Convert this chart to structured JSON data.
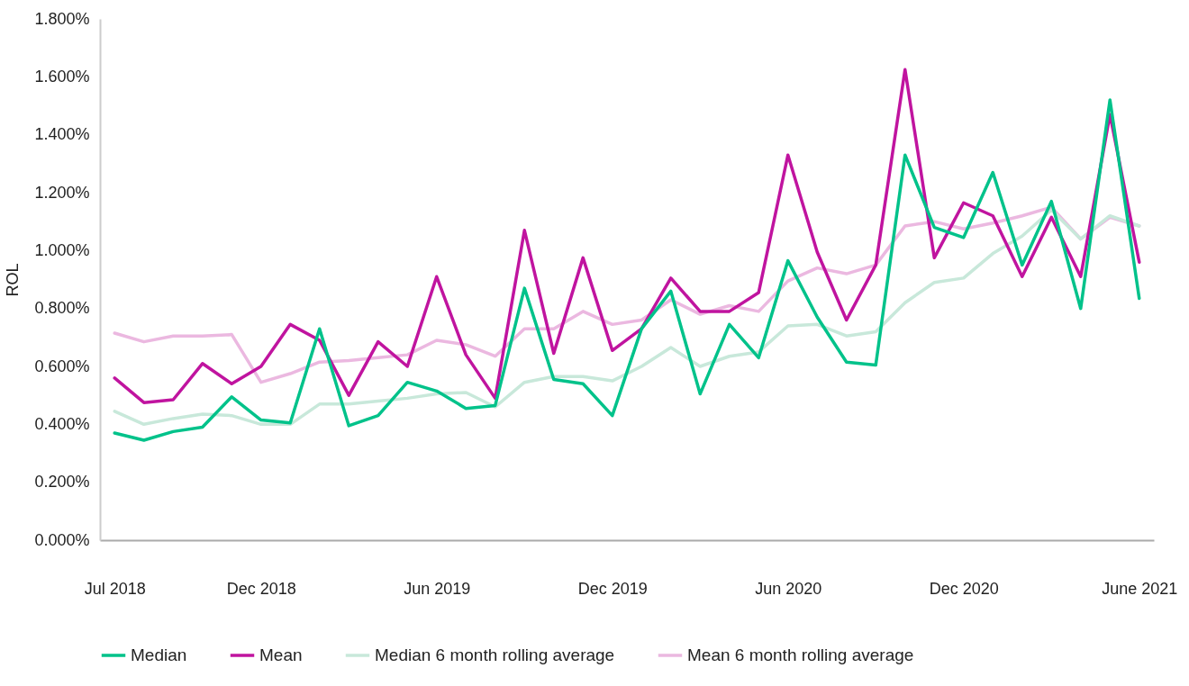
{
  "chart_data": {
    "type": "line",
    "ylabel": "ROL",
    "legend": "bottom",
    "categories": [
      "Jul 2018",
      null,
      null,
      null,
      null,
      "Dec 2018",
      null,
      null,
      null,
      null,
      null,
      "Jun 2019",
      null,
      null,
      null,
      null,
      null,
      "Dec 2019",
      null,
      null,
      null,
      null,
      null,
      "Jun 2020",
      null,
      null,
      null,
      null,
      null,
      "Dec 2020",
      null,
      null,
      null,
      null,
      null,
      "June 2021"
    ],
    "ylim": [
      0,
      1.8
    ],
    "yticks": [
      {
        "value": 0,
        "label": "0.000%"
      },
      {
        "value": 0.2,
        "label": "0.200%"
      },
      {
        "value": 0.4,
        "label": "0.400%"
      },
      {
        "value": 0.6,
        "label": "0.600%"
      },
      {
        "value": 0.8,
        "label": "0.800%"
      },
      {
        "value": 1.0,
        "label": "1.000%"
      },
      {
        "value": 1.2,
        "label": "1.200%"
      },
      {
        "value": 1.4,
        "label": "1.400%"
      },
      {
        "value": 1.6,
        "label": "1.600%"
      },
      {
        "value": 1.8,
        "label": "1.800%"
      }
    ],
    "series": [
      {
        "name": "Median",
        "color": "#00c28a",
        "values": [
          0.37,
          0.345,
          0.375,
          0.39,
          0.495,
          0.415,
          0.405,
          0.73,
          0.395,
          0.43,
          0.545,
          0.515,
          0.455,
          0.465,
          0.87,
          0.555,
          0.54,
          0.43,
          0.73,
          0.86,
          0.505,
          0.745,
          0.63,
          0.965,
          0.77,
          0.615,
          0.605,
          1.33,
          1.08,
          1.045,
          1.27,
          0.95,
          1.17,
          0.8,
          1.52,
          0.835
        ]
      },
      {
        "name": "Mean",
        "color": "#c0149f",
        "values": [
          0.56,
          0.475,
          0.485,
          0.61,
          0.54,
          0.6,
          0.745,
          0.69,
          0.5,
          0.685,
          0.6,
          0.91,
          0.64,
          0.49,
          1.07,
          0.645,
          0.975,
          0.655,
          0.73,
          0.905,
          0.79,
          0.79,
          0.855,
          1.33,
          0.995,
          0.76,
          0.95,
          1.625,
          0.975,
          1.165,
          1.12,
          0.91,
          1.115,
          0.91,
          1.47,
          0.96
        ]
      },
      {
        "name": "Median 6 month rolling average",
        "color": "#c8e8da",
        "values": [
          0.445,
          0.4,
          0.42,
          0.435,
          0.43,
          0.4,
          0.4,
          0.47,
          0.47,
          0.48,
          0.49,
          0.505,
          0.51,
          0.46,
          0.545,
          0.565,
          0.565,
          0.55,
          0.6,
          0.665,
          0.6,
          0.635,
          0.65,
          0.74,
          0.745,
          0.705,
          0.72,
          0.82,
          0.89,
          0.905,
          0.99,
          1.05,
          1.14,
          1.04,
          1.12,
          1.085
        ]
      },
      {
        "name": "Mean 6 month rolling average",
        "color": "#ebb8e0",
        "values": [
          0.715,
          0.685,
          0.705,
          0.705,
          0.71,
          0.545,
          0.575,
          0.615,
          0.62,
          0.63,
          0.64,
          0.69,
          0.675,
          0.635,
          0.73,
          0.73,
          0.79,
          0.745,
          0.76,
          0.83,
          0.78,
          0.81,
          0.79,
          0.895,
          0.94,
          0.92,
          0.95,
          1.085,
          1.1,
          1.075,
          1.095,
          1.12,
          1.15,
          1.04,
          1.115,
          1.085
        ]
      }
    ]
  }
}
